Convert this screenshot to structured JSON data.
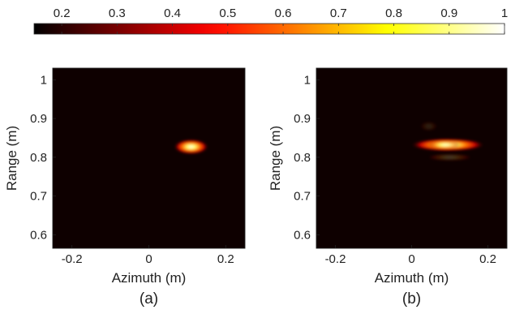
{
  "colorbar": {
    "colormap": "hot",
    "range": [
      0.15,
      1.0
    ],
    "ticks": [
      0.2,
      0.3,
      0.4,
      0.5,
      0.6,
      0.7,
      0.8,
      0.9,
      1.0
    ],
    "tick_labels": [
      "0.2",
      "0.3",
      "0.4",
      "0.5",
      "0.6",
      "0.7",
      "0.8",
      "0.9",
      "1"
    ]
  },
  "chart_data": [
    {
      "type": "heatmap",
      "panel_label": "(a)",
      "xlabel": "Azimuth (m)",
      "ylabel": "Range (m)",
      "xlim": [
        -0.25,
        0.25
      ],
      "ylim": [
        0.565,
        1.03
      ],
      "xticks": [
        -0.2,
        0,
        0.2
      ],
      "xtick_labels": [
        "-0.2",
        "0",
        "0.2"
      ],
      "yticks": [
        0.6,
        0.7,
        0.8,
        0.9,
        1.0
      ],
      "ytick_labels": [
        "0.6",
        "0.7",
        "0.8",
        "0.9",
        "1"
      ],
      "background_value": 0.0,
      "features": [
        {
          "type": "blob",
          "x": 0.11,
          "y": 0.827,
          "sx": 0.03,
          "sy": 0.013,
          "peak": 1.0
        }
      ]
    },
    {
      "type": "heatmap",
      "panel_label": "(b)",
      "xlabel": "Azimuth (m)",
      "ylabel": "Range (m)",
      "xlim": [
        -0.25,
        0.25
      ],
      "ylim": [
        0.565,
        1.03
      ],
      "xticks": [
        -0.2,
        0,
        0.2
      ],
      "xtick_labels": [
        "-0.2",
        "0",
        "0.2"
      ],
      "yticks": [
        0.6,
        0.7,
        0.8,
        0.9,
        1.0
      ],
      "ytick_labels": [
        "0.6",
        "0.7",
        "0.8",
        "0.9",
        "1"
      ],
      "background_value": 0.0,
      "features": [
        {
          "type": "streak",
          "x": 0.095,
          "y": 0.832,
          "sx": 0.075,
          "sy": 0.011,
          "peak": 1.0
        },
        {
          "type": "blob",
          "x": 0.085,
          "y": 0.832,
          "sx": 0.028,
          "sy": 0.01,
          "peak": 0.35
        },
        {
          "type": "blob",
          "x": 0.1,
          "y": 0.8,
          "sx": 0.04,
          "sy": 0.006,
          "peak": 0.22
        },
        {
          "type": "blob",
          "x": 0.045,
          "y": 0.88,
          "sx": 0.015,
          "sy": 0.008,
          "peak": 0.12
        }
      ]
    }
  ]
}
